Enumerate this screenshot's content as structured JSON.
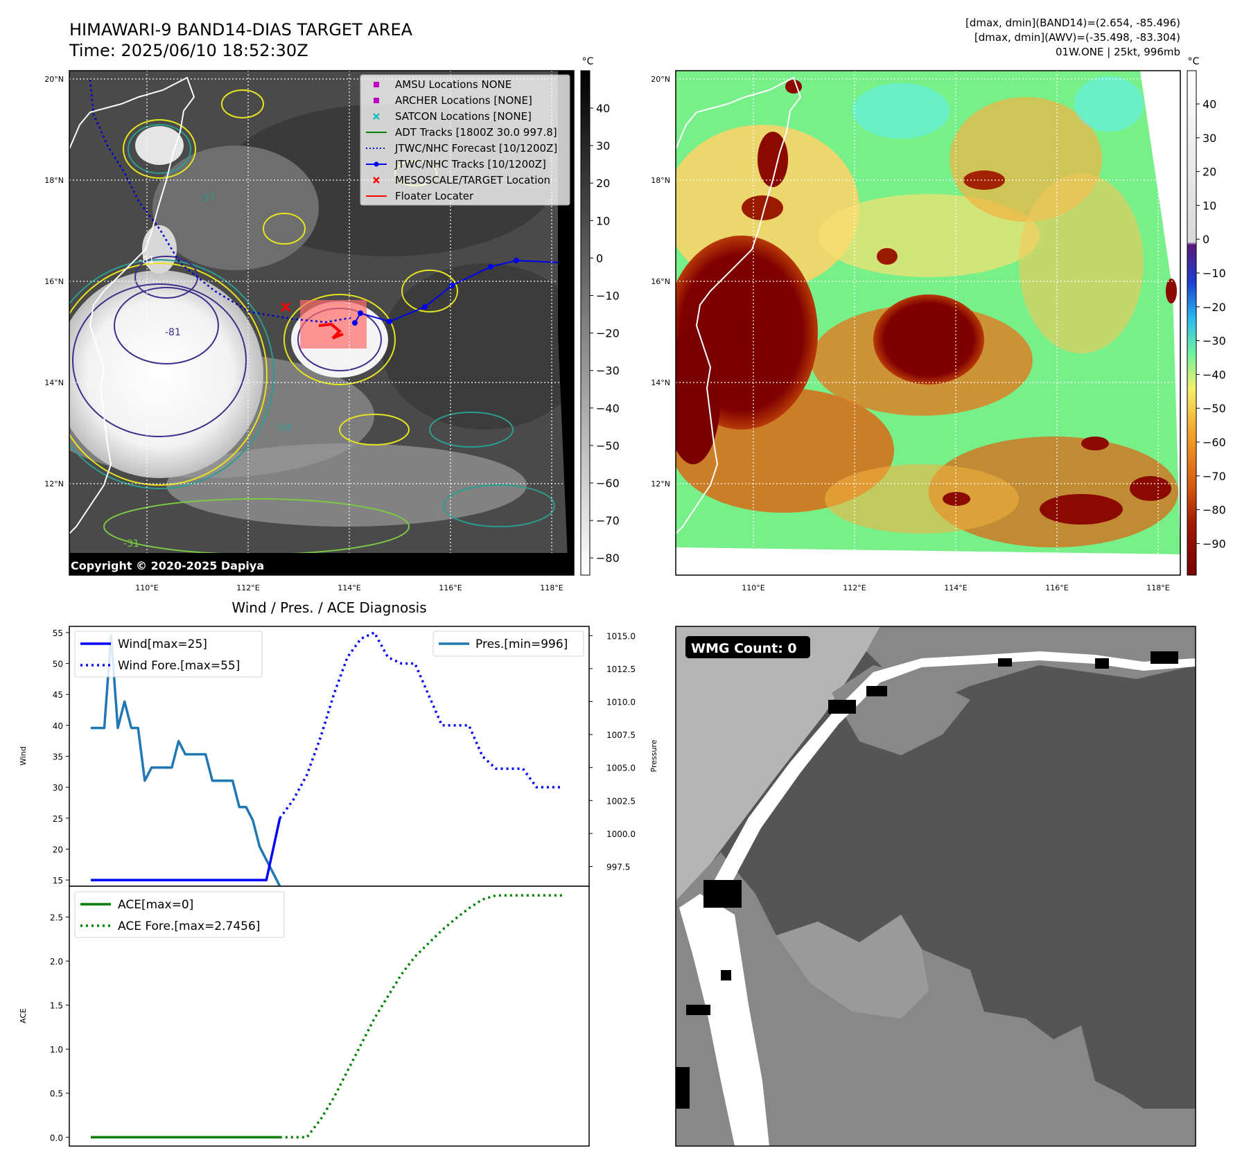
{
  "header": {
    "title_line1": "HIMAWARI-9 BAND14-DIAS TARGET AREA",
    "title_line2": "Time: 2025/06/10 18:52:30Z",
    "info_line1": "[dmax, dmin](BAND14)=(2.654, -85.496)",
    "info_line2": "[dmax, dmin](AWV)=(-35.498, -83.304)",
    "info_line3": "01W.ONE | 25kt, 996mb"
  },
  "map": {
    "lat_labels": [
      "20°N",
      "18°N",
      "16°N",
      "14°N",
      "12°N"
    ],
    "lon_labels": [
      "110°E",
      "112°E",
      "114°E",
      "116°E",
      "118°E"
    ],
    "copyright": "Copyright © 2020-2025 Dapiya",
    "contour_labels": [
      "-81",
      "-81",
      "-54",
      "-31",
      "-37"
    ],
    "legend": [
      {
        "label": "AMSU Locations NONE",
        "color": "#c000c0",
        "kind": "square"
      },
      {
        "label": "ARCHER Locations [NONE]",
        "color": "#c000c0",
        "kind": "square"
      },
      {
        "label": "SATCON Locations [NONE]",
        "color": "#17b8b8",
        "kind": "x"
      },
      {
        "label": "ADT Tracks [1800Z 30.0 997.8]",
        "color": "#008000",
        "kind": "line"
      },
      {
        "label": "JTWC/NHC Forecast [10/1200Z]",
        "color": "#0000cc",
        "kind": "dotted"
      },
      {
        "label": "JTWC/NHC Tracks [10/1200Z]",
        "color": "#0000ee",
        "kind": "linedot"
      },
      {
        "label": "MESOSCALE/TARGET Location",
        "color": "#ff0000",
        "kind": "x"
      },
      {
        "label": "Floater Locater",
        "color": "#ff0000",
        "kind": "line"
      }
    ]
  },
  "colorbar_gray": {
    "unit": "°C",
    "ticks": [
      "40",
      "30",
      "20",
      "10",
      "0",
      "−10",
      "−20",
      "−30",
      "−40",
      "−50",
      "−60",
      "−70",
      "−80"
    ]
  },
  "colorbar_awv": {
    "unit": "°C",
    "ticks": [
      "40",
      "30",
      "20",
      "10",
      "0",
      "−10",
      "−20",
      "−30",
      "−40",
      "−50",
      "−60",
      "−70",
      "−80",
      "−90"
    ]
  },
  "wmg": {
    "label": "WMG Count: 0"
  },
  "chart_data": [
    {
      "type": "line",
      "title": "Wind / Pres. / ACE Diagnosis",
      "ylabel": "Wind",
      "ylim": [
        14,
        56
      ],
      "y_ticks": [
        "55",
        "50",
        "45",
        "40",
        "35",
        "30",
        "25",
        "20",
        "15"
      ],
      "series": [
        {
          "name": "Wind[max=25]",
          "style": "solid",
          "color": "#0000ff",
          "x": [
            0,
            1,
            2,
            3,
            4,
            5,
            6,
            7,
            8,
            9,
            10,
            11,
            12,
            13,
            14,
            15,
            16,
            17,
            18,
            19,
            20,
            21,
            22,
            23,
            24,
            25,
            26,
            27,
            28
          ],
          "values": [
            15,
            15,
            15,
            15,
            15,
            15,
            15,
            15,
            15,
            15,
            15,
            15,
            15,
            15,
            15,
            15,
            15,
            15,
            15,
            15,
            15,
            15,
            15,
            15,
            15,
            15,
            15,
            20,
            25
          ]
        },
        {
          "name": "Wind Fore.[max=55]",
          "style": "dotted",
          "color": "#0000ff",
          "x": [
            28,
            30,
            32,
            34,
            36,
            38,
            40,
            42,
            44,
            46,
            48,
            50,
            52,
            54,
            56,
            58,
            60,
            62,
            64,
            66,
            68,
            70
          ],
          "values": [
            25,
            28,
            32,
            38,
            45,
            51,
            54,
            55,
            51,
            50,
            50,
            45,
            40,
            40,
            40,
            35,
            33,
            33,
            33,
            30,
            30,
            30
          ]
        }
      ]
    },
    {
      "type": "line",
      "ylabel": "Pressure",
      "ylim": [
        996,
        1015.7
      ],
      "y_ticks": [
        "1015.0",
        "1012.5",
        "1010.0",
        "1007.5",
        "1005.0",
        "1002.5",
        "1000.0",
        "997.5"
      ],
      "series": [
        {
          "name": "Pres.[min=996]",
          "style": "solid",
          "color": "#1f77b4",
          "x": [
            0,
            1,
            2,
            3,
            4,
            5,
            6,
            7,
            8,
            9,
            10,
            11,
            12,
            13,
            14,
            15,
            16,
            17,
            18,
            19,
            20,
            21,
            22,
            23,
            24,
            25,
            26,
            27,
            28
          ],
          "values": [
            1008.0,
            1008.0,
            1008.0,
            1015.0,
            1008.0,
            1010.0,
            1008.0,
            1008.0,
            1004.0,
            1005.0,
            1005.0,
            1005.0,
            1005.0,
            1007.0,
            1006.0,
            1006.0,
            1006.0,
            1006.0,
            1004.0,
            1004.0,
            1004.0,
            1004.0,
            1002.0,
            1002.0,
            1001.0,
            999.0,
            998.0,
            997.0,
            996.0
          ]
        }
      ]
    },
    {
      "type": "line",
      "ylabel": "ACE",
      "ylim": [
        -0.1,
        2.85
      ],
      "y_ticks": [
        "2.5",
        "2.0",
        "1.5",
        "1.0",
        "0.5",
        "0.0"
      ],
      "series": [
        {
          "name": "ACE[max=0]",
          "style": "solid",
          "color": "#008000",
          "x": [
            0,
            28
          ],
          "values": [
            0,
            0
          ]
        },
        {
          "name": "ACE Fore.[max=2.7456]",
          "style": "dotted",
          "color": "#008000",
          "x": [
            28,
            30,
            32,
            34,
            36,
            38,
            40,
            42,
            44,
            46,
            48,
            50,
            52,
            54,
            56,
            58,
            60,
            62,
            64,
            66,
            68,
            70
          ],
          "values": [
            0,
            0,
            0,
            0.2,
            0.45,
            0.75,
            1.05,
            1.35,
            1.6,
            1.85,
            2.05,
            2.2,
            2.35,
            2.48,
            2.6,
            2.7,
            2.7456,
            2.7456,
            2.7456,
            2.7456,
            2.7456,
            2.7456
          ]
        }
      ]
    }
  ]
}
